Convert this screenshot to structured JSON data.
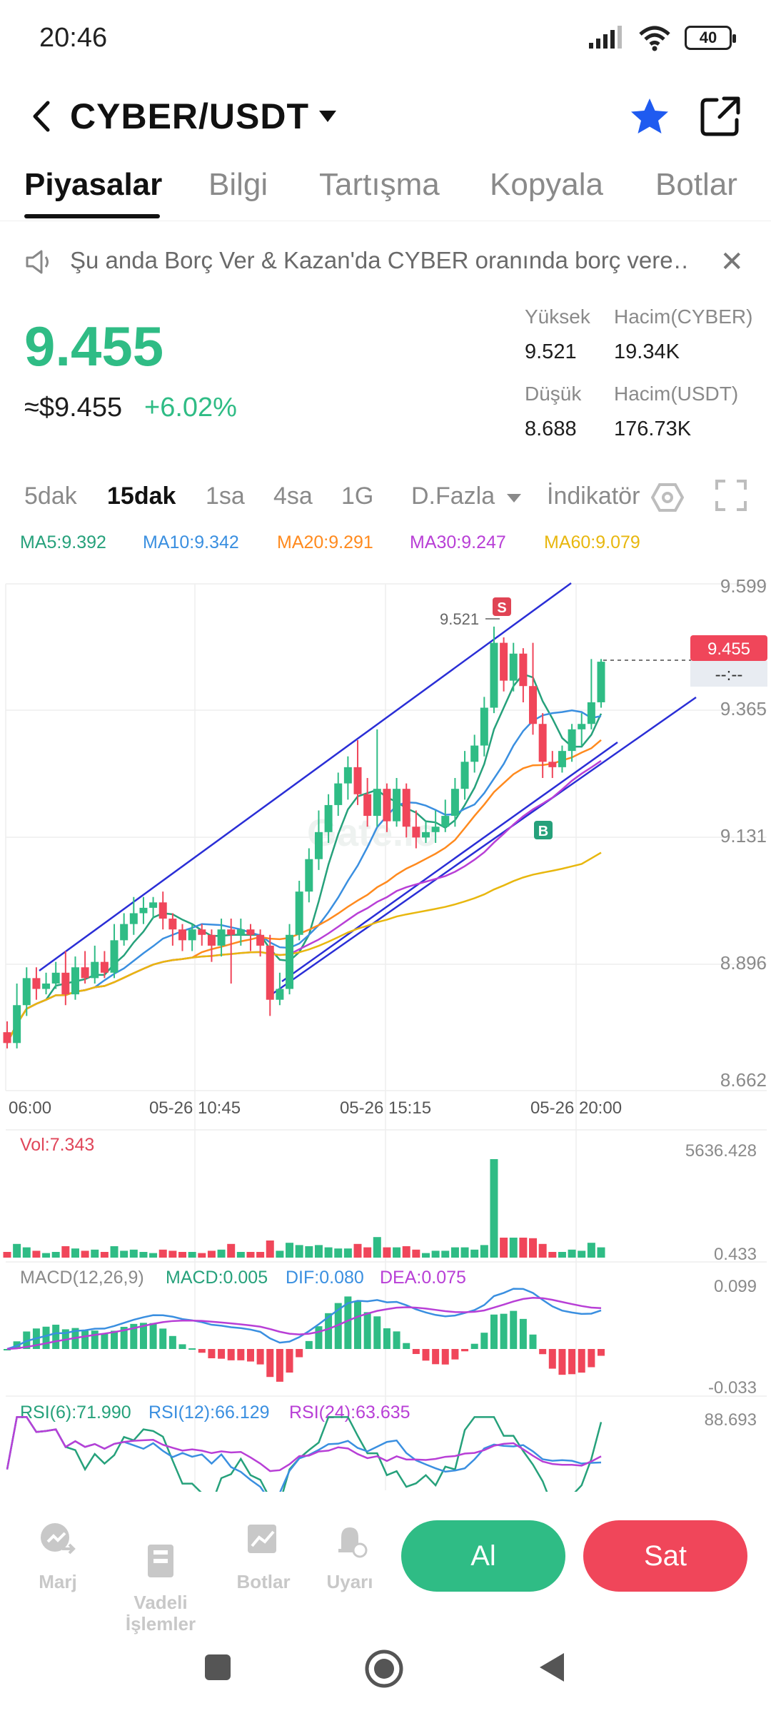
{
  "status": {
    "time": "20:46",
    "battery": "40"
  },
  "header": {
    "pair": "CYBER/USDT"
  },
  "tabs": [
    "Piyasalar",
    "Bilgi",
    "Tartışma",
    "Kopyala",
    "Botlar"
  ],
  "notice": {
    "text": "Şu anda Borç Ver & Kazan'da CYBER oranında borç vere…"
  },
  "ticker": {
    "price": "9.455",
    "usd_price": "≈$9.455",
    "change": "+6.02%",
    "high_label": "Yüksek",
    "high": "9.521",
    "low_label": "Düşük",
    "low": "8.688",
    "vol_base_label": "Hacim(CYBER)",
    "vol_base": "19.34K",
    "vol_quote_label": "Hacim(USDT)",
    "vol_quote": "176.73K"
  },
  "timeframes": [
    "5dak",
    "15dak",
    "1sa",
    "4sa",
    "1G",
    "D.Fazla",
    "İndikatör"
  ],
  "indicators": {
    "ma5": "MA5:9.392",
    "ma10": "MA10:9.342",
    "ma20": "MA20:9.291",
    "ma30": "MA30:9.247",
    "ma60": "MA60:9.079",
    "vol": "Vol:7.343",
    "macd_title": "MACD(12,26,9)",
    "macd": "MACD:0.005",
    "dif": "DIF:0.080",
    "dea": "DEA:0.075",
    "rsi6": "RSI(6):71.990",
    "rsi12": "RSI(12):66.129",
    "rsi24": "RSI(24):63.635"
  },
  "chart_data": {
    "type": "candlestick",
    "y_ticks": [
      "9.599",
      "9.365",
      "9.131",
      "8.896",
      "8.662"
    ],
    "x_ticks": [
      "06:00",
      "05-26 10:45",
      "05-26 15:15",
      "05-26 20:00"
    ],
    "ylim": [
      8.662,
      9.599
    ],
    "current_price_tag": "9.455",
    "countdown_tag": "--:--",
    "high_marker": "9.521",
    "sell_marker": "S",
    "buy_marker": "B",
    "vol_ticks": [
      "5636.428",
      "0.433"
    ],
    "macd_ticks": [
      "0.099",
      "-0.033"
    ],
    "rsi_ticks": [
      "88.693"
    ],
    "candles": [
      [
        8.77,
        8.75,
        8.79,
        8.74
      ],
      [
        8.75,
        8.82,
        8.86,
        8.74
      ],
      [
        8.82,
        8.87,
        8.89,
        8.8
      ],
      [
        8.87,
        8.85,
        8.89,
        8.83
      ],
      [
        8.85,
        8.86,
        8.88,
        8.84
      ],
      [
        8.86,
        8.88,
        8.9,
        8.85
      ],
      [
        8.88,
        8.84,
        8.92,
        8.82
      ],
      [
        8.84,
        8.89,
        8.91,
        8.83
      ],
      [
        8.89,
        8.87,
        8.92,
        8.86
      ],
      [
        8.87,
        8.9,
        8.93,
        8.86
      ],
      [
        8.9,
        8.88,
        8.92,
        8.87
      ],
      [
        8.88,
        8.94,
        8.97,
        8.87
      ],
      [
        8.94,
        8.97,
        8.99,
        8.93
      ],
      [
        8.97,
        8.99,
        9.02,
        8.95
      ],
      [
        8.99,
        9.0,
        9.02,
        8.97
      ],
      [
        9.0,
        9.01,
        9.02,
        8.98
      ],
      [
        9.01,
        8.98,
        9.03,
        8.96
      ],
      [
        8.98,
        8.96,
        8.99,
        8.93
      ],
      [
        8.96,
        8.94,
        8.97,
        8.92
      ],
      [
        8.94,
        8.96,
        8.97,
        8.92
      ],
      [
        8.96,
        8.95,
        8.97,
        8.93
      ],
      [
        8.95,
        8.93,
        8.96,
        8.9
      ],
      [
        8.93,
        8.96,
        8.98,
        8.91
      ],
      [
        8.96,
        8.95,
        8.98,
        8.86
      ],
      [
        8.95,
        8.96,
        8.98,
        8.93
      ],
      [
        8.96,
        8.95,
        8.97,
        8.92
      ],
      [
        8.95,
        8.93,
        8.96,
        8.91
      ],
      [
        8.93,
        8.83,
        8.95,
        8.8
      ],
      [
        8.83,
        8.85,
        8.88,
        8.82
      ],
      [
        8.85,
        8.95,
        8.97,
        8.84
      ],
      [
        8.95,
        9.03,
        9.05,
        8.94
      ],
      [
        9.03,
        9.09,
        9.11,
        9.01
      ],
      [
        9.09,
        9.14,
        9.18,
        9.07
      ],
      [
        9.14,
        9.19,
        9.21,
        9.12
      ],
      [
        9.19,
        9.23,
        9.25,
        9.17
      ],
      [
        9.23,
        9.26,
        9.28,
        9.2
      ],
      [
        9.26,
        9.21,
        9.31,
        9.19
      ],
      [
        9.21,
        9.17,
        9.24,
        9.15
      ],
      [
        9.17,
        9.22,
        9.33,
        9.15
      ],
      [
        9.22,
        9.16,
        9.23,
        9.14
      ],
      [
        9.16,
        9.22,
        9.24,
        9.15
      ],
      [
        9.22,
        9.15,
        9.23,
        9.13
      ],
      [
        9.15,
        9.13,
        9.18,
        9.11
      ],
      [
        9.13,
        9.14,
        9.16,
        9.12
      ],
      [
        9.14,
        9.15,
        9.18,
        9.12
      ],
      [
        9.15,
        9.17,
        9.2,
        9.14
      ],
      [
        9.17,
        9.22,
        9.24,
        9.15
      ],
      [
        9.22,
        9.27,
        9.29,
        9.2
      ],
      [
        9.27,
        9.3,
        9.32,
        9.25
      ],
      [
        9.3,
        9.37,
        9.39,
        9.28
      ],
      [
        9.37,
        9.49,
        9.52,
        9.36
      ],
      [
        9.49,
        9.42,
        9.5,
        9.4
      ],
      [
        9.42,
        9.47,
        9.49,
        9.4
      ],
      [
        9.47,
        9.41,
        9.48,
        9.38
      ],
      [
        9.41,
        9.34,
        9.49,
        9.32
      ],
      [
        9.34,
        9.27,
        9.36,
        9.24
      ],
      [
        9.27,
        9.26,
        9.29,
        9.24
      ],
      [
        9.26,
        9.29,
        9.3,
        9.25
      ],
      [
        9.29,
        9.33,
        9.34,
        9.27
      ],
      [
        9.33,
        9.34,
        9.36,
        9.3
      ],
      [
        9.34,
        9.38,
        9.46,
        9.33
      ],
      [
        9.38,
        9.455,
        9.46,
        9.37
      ]
    ]
  },
  "bottom_nav": {
    "margin": "Marj",
    "futures": "Vadeli\nİşlemler",
    "bots": "Botlar",
    "alerts": "Uyarı",
    "buy": "Al",
    "sell": "Sat"
  }
}
